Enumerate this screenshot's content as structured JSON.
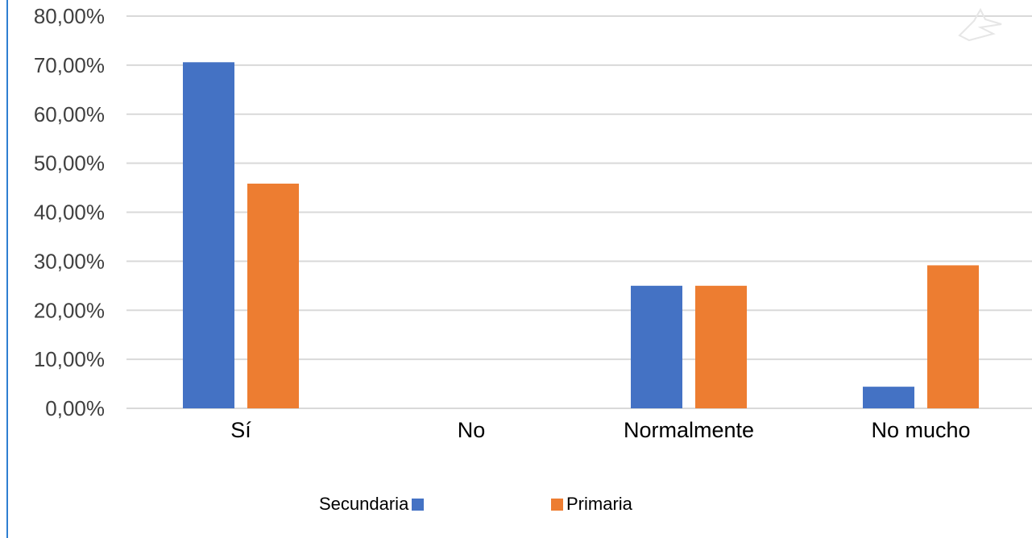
{
  "chart_data": {
    "type": "bar",
    "categories": [
      "Sí",
      "No",
      "Normalmente",
      "No mucho"
    ],
    "series": [
      {
        "name": "Secundaria",
        "color": "#4472C4",
        "values": [
          70.59,
          0,
          25.0,
          4.41
        ]
      },
      {
        "name": "Primaria",
        "color": "#ED7D31",
        "values": [
          45.83,
          0,
          25.0,
          29.17
        ]
      }
    ],
    "y_ticks": [
      "0,00%",
      "10,00%",
      "20,00%",
      "30,00%",
      "40,00%",
      "50,00%",
      "60,00%",
      "70,00%",
      "80,00%"
    ],
    "ylim": [
      0,
      80
    ],
    "grid": true,
    "legend_position": "bottom"
  }
}
